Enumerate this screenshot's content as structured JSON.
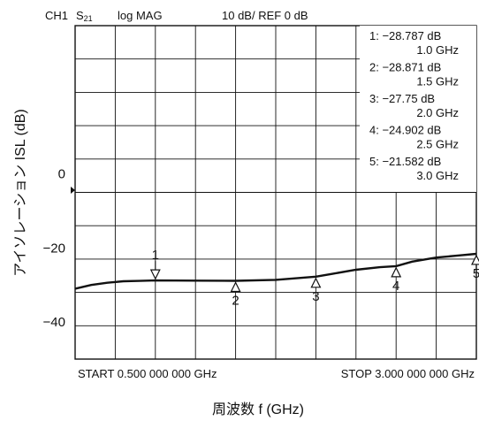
{
  "header": {
    "channel": "CH1",
    "param_main": "S",
    "param_sub": "21",
    "format": "log  MAG",
    "scale": "10 dB/  REF 0 dB"
  },
  "chart_data": {
    "type": "line",
    "ylabel": "アイソレーション ISL (dB)",
    "xlabel": "周波数  f (GHz)",
    "start_label": "START 0.500 000 000 GHz",
    "stop_label": "STOP 3.000 000 000 GHz",
    "xlim": [
      0.5,
      3.0
    ],
    "ylim": [
      -50,
      40
    ],
    "y_ticks": [
      {
        "value": 0,
        "label": "0"
      },
      {
        "value": -20,
        "label": "−20"
      },
      {
        "value": -40,
        "label": "−40"
      }
    ],
    "reference_value": 0,
    "grid": true,
    "series": [
      {
        "color": "#111111",
        "x": [
          0.5,
          0.6,
          0.7,
          0.8,
          0.9,
          1.0,
          1.25,
          1.5,
          1.75,
          2.0,
          2.1,
          2.25,
          2.4,
          2.5,
          2.6,
          2.75,
          2.9,
          3.0
        ],
        "y": [
          -31.0,
          -30.0,
          -29.4,
          -29.0,
          -28.9,
          -28.787,
          -28.83,
          -28.871,
          -28.6,
          -27.75,
          -27.0,
          -25.9,
          -25.2,
          -24.902,
          -23.7,
          -22.6,
          -22.0,
          -21.582
        ]
      }
    ],
    "markers": [
      {
        "id": "1",
        "x": 1.0,
        "y": -28.787,
        "text": "1: −28.787 dB",
        "freq": "1.0 GHz",
        "label_pos": "above"
      },
      {
        "id": "2",
        "x": 1.5,
        "y": -28.871,
        "text": "2: −28.871 dB",
        "freq": "1.5 GHz",
        "label_pos": "below"
      },
      {
        "id": "3",
        "x": 2.0,
        "y": -27.75,
        "text": "3: −27.75   dB",
        "freq": "2.0 GHz",
        "label_pos": "below"
      },
      {
        "id": "4",
        "x": 2.5,
        "y": -24.902,
        "text": "4: −24.902 dB",
        "freq": "2.5 GHz",
        "label_pos": "below"
      },
      {
        "id": "5",
        "x": 3.0,
        "y": -21.582,
        "text": "5: −21.582 dB",
        "freq": "3.0 GHz",
        "label_pos": "below"
      }
    ]
  }
}
